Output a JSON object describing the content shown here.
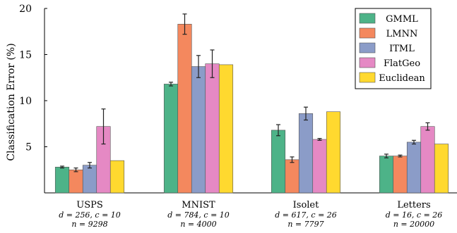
{
  "chart_data": {
    "type": "bar",
    "ylabel": "Classification Error (%)",
    "ylim": [
      0,
      20
    ],
    "yticks": [
      5,
      10,
      15,
      20
    ],
    "categories": [
      "USPS",
      "MNIST",
      "Isolet",
      "Letters"
    ],
    "category_sublabels": [
      [
        "d = 256, c = 10",
        "n = 9298"
      ],
      [
        "d = 784, c = 10",
        "n = 4000"
      ],
      [
        "d = 617, c = 26",
        "n = 7797"
      ],
      [
        "d = 16, c = 26",
        "n = 20000"
      ]
    ],
    "legend_position": "top-right",
    "series": [
      {
        "name": "GMML",
        "color": "#4db388",
        "values": [
          2.8,
          11.8,
          6.8,
          4.0
        ],
        "errors": [
          0.1,
          0.2,
          0.6,
          0.2
        ]
      },
      {
        "name": "LMNN",
        "color": "#f4885e",
        "values": [
          2.5,
          18.3,
          3.6,
          4.0
        ],
        "errors": [
          0.2,
          1.1,
          0.3,
          0.1
        ]
      },
      {
        "name": "ITML",
        "color": "#8b9cc8",
        "values": [
          3.0,
          13.7,
          8.6,
          5.5
        ],
        "errors": [
          0.3,
          1.2,
          0.7,
          0.2
        ]
      },
      {
        "name": "FlatGeo",
        "color": "#e589c4",
        "values": [
          7.2,
          14.0,
          5.8,
          7.2
        ],
        "errors": [
          1.9,
          1.5,
          0.1,
          0.4
        ]
      },
      {
        "name": "Euclidean",
        "color": "#ffd92f",
        "values": [
          3.5,
          13.9,
          8.8,
          5.3
        ],
        "errors": [
          0,
          0,
          0,
          0
        ]
      }
    ]
  }
}
